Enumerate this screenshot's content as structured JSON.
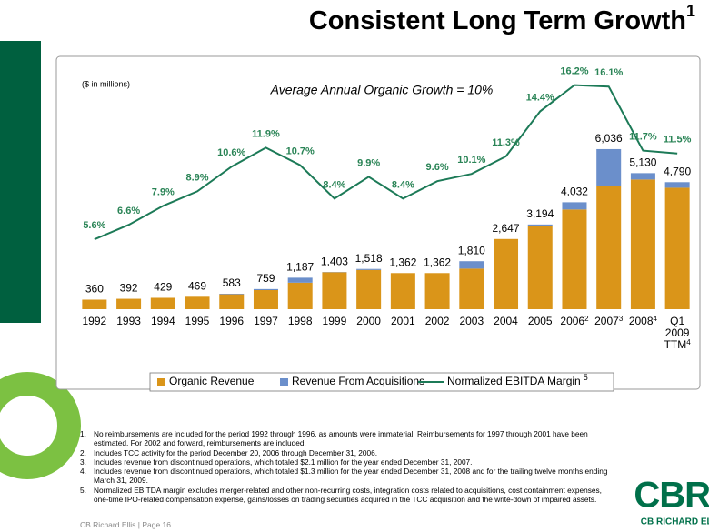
{
  "title": "Consistent Long Term Growth",
  "title_superscript": "1",
  "chart_data": {
    "type": "bar",
    "subtitle": "($ in millions)",
    "annotation": "Average Annual Organic Growth = 10%",
    "categories": [
      "1992",
      "1993",
      "1994",
      "1995",
      "1996",
      "1997",
      "1998",
      "1999",
      "2000",
      "2001",
      "2002",
      "2003",
      "2004",
      "2005",
      "2006",
      "2007",
      "2008",
      "Q1 2009 TTM"
    ],
    "category_superscripts": [
      null,
      null,
      null,
      null,
      null,
      null,
      null,
      null,
      null,
      null,
      null,
      null,
      null,
      null,
      "2",
      "3",
      "4",
      "4"
    ],
    "totals": [
      360,
      392,
      429,
      469,
      583,
      759,
      1187,
      1403,
      1518,
      1362,
      1362,
      1810,
      2647,
      3194,
      4032,
      6036,
      5130,
      4790
    ],
    "total_labels": [
      "360",
      "392",
      "429",
      "469",
      "583",
      "759",
      "1,187",
      "1,403",
      "1,518",
      "1,362",
      "1,362",
      "1,810",
      "2,647",
      "3,194",
      "4,032",
      "6,036",
      "5,130",
      "4,790"
    ],
    "series": [
      {
        "name": "Organic Revenue",
        "color": "#DA9519",
        "values": [
          360,
          392,
          429,
          469,
          563,
          720,
          1000,
          1393,
          1480,
          1362,
          1362,
          1530,
          2647,
          3120,
          3760,
          4650,
          4890,
          4580
        ]
      },
      {
        "name": "Revenue From Acquisitions",
        "color": "#6B8FCB",
        "values": [
          0,
          0,
          0,
          0,
          20,
          39,
          187,
          10,
          38,
          0,
          0,
          280,
          0,
          74,
          272,
          1386,
          240,
          210
        ]
      },
      {
        "name": "Normalized EBITDA Margin",
        "name_superscript": "5",
        "type": "line",
        "axis": "y2",
        "color": "#1C7A57",
        "values": [
          5.6,
          6.6,
          7.9,
          8.9,
          10.6,
          11.9,
          10.7,
          8.4,
          9.9,
          8.4,
          9.6,
          10.1,
          11.3,
          14.4,
          16.2,
          16.1,
          11.7,
          11.5
        ],
        "value_labels": [
          "5.6%",
          "6.6%",
          "7.9%",
          "8.9%",
          "10.6%",
          "11.9%",
          "10.7%",
          "8.4%",
          "9.9%",
          "8.4%",
          "9.6%",
          "10.1%",
          "11.3%",
          "14.4%",
          "16.2%",
          "16.1%",
          "11.7%",
          "11.5%"
        ]
      }
    ],
    "ylim": [
      0,
      9600
    ],
    "y2lim": [
      0.8,
      18.3
    ],
    "legend": "bottom"
  },
  "footnotes": [
    {
      "number": "1.",
      "text": "No reimbursements are included for the period 1992 through 1996, as amounts were immaterial. Reimbursements for 1997 through 2001 have been estimated. For 2002 and forward, reimbursements are included."
    },
    {
      "number": "2.",
      "text": "Includes TCC activity for the period December 20, 2006 through December 31, 2006."
    },
    {
      "number": "3.",
      "text": "Includes revenue from discontinued operations, which totaled $2.1 million for the year ended December 31, 2007."
    },
    {
      "number": "4.",
      "text": "Includes revenue from discontinued operations, which totaled $1.3 million for the year ended December 31, 2008 and for the trailing twelve months ending March 31, 2009."
    },
    {
      "number": "5.",
      "text": "Normalized EBITDA margin excludes merger-related and other non-recurring costs, integration costs related to acquisitions, cost containment expenses, one-time IPO-related compensation expense, gains/losses on trading securities acquired in the TCC acquisition and the write-down of impaired assets."
    }
  ],
  "footer": "CB Richard Ellis | Page 16",
  "logo": {
    "main": "CBRE",
    "sub": "CB RICHARD ELLIS"
  }
}
